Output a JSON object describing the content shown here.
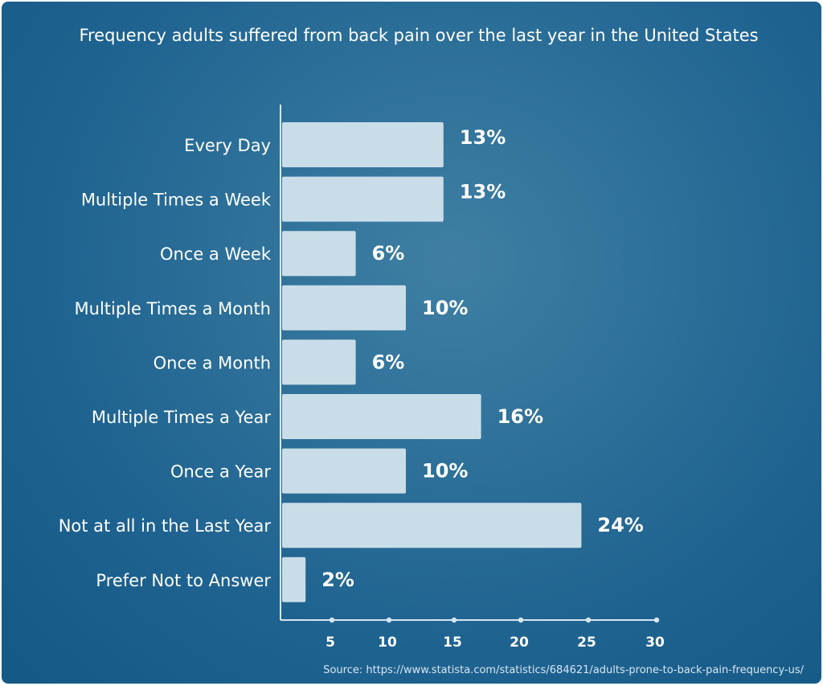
{
  "chart_data": {
    "type": "bar",
    "orientation": "horizontal",
    "title": "Frequency adults suffered from back pain over the last year in the United States",
    "categories": [
      "Every Day",
      "Multiple Times a Week",
      "Once a Week",
      "Multiple Times a Month",
      "Once a Month",
      "Multiple Times a Year",
      "Once a Year",
      "Not at all in the Last Year",
      "Prefer Not to Answer"
    ],
    "values": [
      13,
      13,
      6,
      10,
      6,
      16,
      10,
      24,
      2
    ],
    "value_labels": [
      "13%",
      "13%",
      "6%",
      "10%",
      "6%",
      "16%",
      "10%",
      "24%",
      "2%"
    ],
    "x_ticks": [
      5,
      10,
      15,
      20,
      25,
      30
    ],
    "xlim": [
      0,
      30
    ],
    "grid": false,
    "legend": "none",
    "source": "Source: https://www.statista.com/statistics/684621/adults-prone-to-back-pain-frequency-us/"
  },
  "colors": {
    "bar": "#c9dde8",
    "axis": "#d6e6f0",
    "text": "#ffffff"
  }
}
